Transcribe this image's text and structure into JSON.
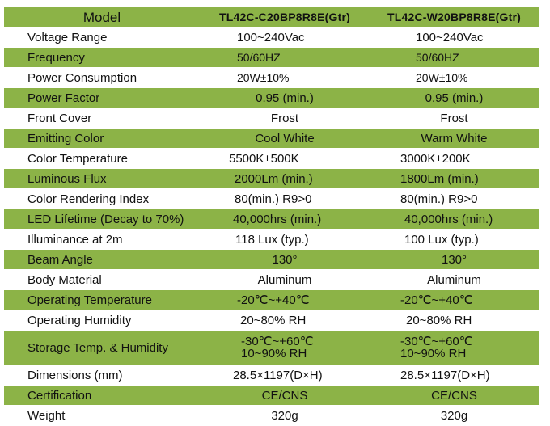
{
  "header": {
    "label": "Model",
    "model_a": "TL42C-C20BP8R8E(Gtr)",
    "model_b": "TL42C-W20BP8R8E(Gtr)"
  },
  "rows": [
    {
      "label": "Voltage Range",
      "a": "100~240Vac",
      "b": "100~240Vac"
    },
    {
      "label": "Frequency",
      "a": "50/60HZ",
      "b": "50/60HZ"
    },
    {
      "label": "Power Consumption",
      "a": "20W±10%",
      "b": "20W±10%"
    },
    {
      "label": "Power Factor",
      "a": "0.95 (min.)",
      "b": "0.95 (min.)"
    },
    {
      "label": "Front Cover",
      "a": "Frost",
      "b": "Frost"
    },
    {
      "label": "Emitting Color",
      "a": "Cool White",
      "b": "Warm White"
    },
    {
      "label": "Color Temperature",
      "a": "5500K±500K",
      "b": "3000K±200K"
    },
    {
      "label": "Luminous Flux",
      "a": "2000Lm (min.)",
      "b": "1800Lm (min.)"
    },
    {
      "label": "Color Rendering Index",
      "a": "80(min.) R9>0",
      "b": "80(min.) R9>0"
    },
    {
      "label": "LED Lifetime (Decay to 70%)",
      "a": "40,000hrs (min.)",
      "b": "40,000hrs (min.)"
    },
    {
      "label": "Illuminance at 2m",
      "a": "118 Lux (typ.)",
      "b": "100 Lux (typ.)"
    },
    {
      "label": "Beam Angle",
      "a": "130°",
      "b": "130°"
    },
    {
      "label": "Body Material",
      "a": "Aluminum",
      "b": "Aluminum"
    },
    {
      "label": "Operating Temperature",
      "a": "-20℃~+40℃",
      "b": "-20℃~+40℃"
    },
    {
      "label": "Operating Humidity",
      "a": "20~80% RH",
      "b": "20~80% RH"
    },
    {
      "label": "Storage Temp. & Humidity",
      "a": "-30℃~+60℃",
      "a2": "10~90% RH",
      "b": "-30℃~+60℃",
      "b2": "10~90% RH"
    },
    {
      "label": "Dimensions (mm)",
      "a": "28.5×1197(D×H)",
      "b": "28.5×1197(D×H)"
    },
    {
      "label": "Certification",
      "a": "CE/CNS",
      "b": "CE/CNS"
    },
    {
      "label": "Weight",
      "a": "320g",
      "b": "320g"
    }
  ],
  "colors": {
    "row_green": "#8cb347",
    "row_white": "#ffffff",
    "text": "#111111"
  }
}
